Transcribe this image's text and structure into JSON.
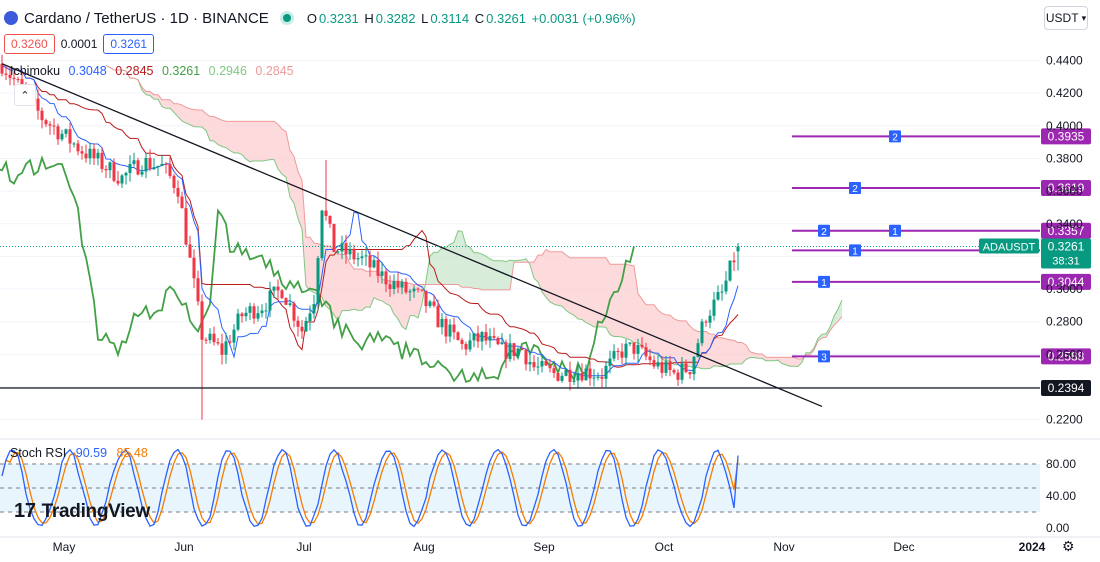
{
  "header": {
    "symbol": "Cardano / TetherUS · 1D · BINANCE",
    "o_label": "O",
    "o_value": "0.3231",
    "h_label": "H",
    "h_value": "0.3282",
    "l_label": "L",
    "l_value": "0.3114",
    "c_label": "C",
    "c_value": "0.3261",
    "change": "+0.0031 (+0.96%)",
    "sell": "0.3260",
    "spread": "0.0001",
    "buy": "0.3261",
    "currency": "USDT"
  },
  "ichimoku": {
    "name": "Ichimoku",
    "v1": "0.3048",
    "v2": "0.2845",
    "v3": "0.3261",
    "v4": "0.2946",
    "v5": "0.2845"
  },
  "stoch": {
    "name": "Stoch RSI",
    "k": "90.59",
    "d": "85.48"
  },
  "branding": {
    "logo_text": "TradingView",
    "logo_mark": "17"
  },
  "colors": {
    "up": "#089981",
    "down": "#f23645",
    "tenkan": "#2962ff",
    "kijun": "#b71c1c",
    "chikou": "#43a047",
    "cloud_up": "#c8e6c9",
    "cloud_down": "#fccbcd",
    "level": "#9c27b0",
    "stoch_k": "#2962ff",
    "stoch_d": "#f57c00"
  },
  "chart_data": [
    {
      "type": "candlestick",
      "title": "Cardano / TetherUS · 1D · BINANCE",
      "ylim": [
        0.21,
        0.455
      ],
      "y_ticks": [
        "0.4400",
        "0.4200",
        "0.4000",
        "0.3800",
        "0.3600",
        "0.3400",
        "0.3200",
        "0.3000",
        "0.2800",
        "0.2600",
        "0.2400",
        "0.2200"
      ],
      "x_ticks": [
        "May",
        "Jun",
        "Jul",
        "Aug",
        "Sep",
        "Oct",
        "Nov",
        "Dec",
        "2024"
      ],
      "price_anchors": [
        {
          "d": 0,
          "p": 0.438
        },
        {
          "d": 10,
          "p": 0.405
        },
        {
          "d": 20,
          "p": 0.385
        },
        {
          "d": 30,
          "p": 0.368
        },
        {
          "d": 35,
          "p": 0.378
        },
        {
          "d": 40,
          "p": 0.375
        },
        {
          "d": 44,
          "p": 0.362
        },
        {
          "d": 50,
          "p": 0.272
        },
        {
          "d": 55,
          "p": 0.262
        },
        {
          "d": 60,
          "p": 0.284
        },
        {
          "d": 65,
          "p": 0.29
        },
        {
          "d": 70,
          "p": 0.3
        },
        {
          "d": 75,
          "p": 0.275
        },
        {
          "d": 78,
          "p": 0.295
        },
        {
          "d": 80,
          "p": 0.352
        },
        {
          "d": 83,
          "p": 0.325
        },
        {
          "d": 90,
          "p": 0.318
        },
        {
          "d": 95,
          "p": 0.308
        },
        {
          "d": 100,
          "p": 0.3
        },
        {
          "d": 105,
          "p": 0.294
        },
        {
          "d": 110,
          "p": 0.278
        },
        {
          "d": 115,
          "p": 0.265
        },
        {
          "d": 120,
          "p": 0.27
        },
        {
          "d": 125,
          "p": 0.262
        },
        {
          "d": 130,
          "p": 0.263
        },
        {
          "d": 133,
          "p": 0.252
        },
        {
          "d": 138,
          "p": 0.248
        },
        {
          "d": 145,
          "p": 0.25
        },
        {
          "d": 150,
          "p": 0.248
        },
        {
          "d": 155,
          "p": 0.262
        },
        {
          "d": 158,
          "p": 0.264
        },
        {
          "d": 163,
          "p": 0.254
        },
        {
          "d": 168,
          "p": 0.248
        },
        {
          "d": 172,
          "p": 0.252
        },
        {
          "d": 176,
          "p": 0.284
        },
        {
          "d": 180,
          "p": 0.297
        },
        {
          "d": 184,
          "p": 0.326
        }
      ],
      "last_price": "0.3261",
      "countdown": "38:31",
      "price_tag": "ADAUSDT",
      "levels": [
        {
          "price": "0.3935",
          "marker": "2"
        },
        {
          "price": "0.3619",
          "marker": "2"
        },
        {
          "price": "0.3357",
          "marker": "2",
          "marker2": "1"
        },
        {
          "price": "0.3237",
          "marker": "1"
        },
        {
          "price": "0.3044",
          "marker": "1"
        },
        {
          "price": "0.2588",
          "marker": "3"
        }
      ],
      "support": "0.2394",
      "trendline": [
        {
          "d": 0,
          "p": 0.438
        },
        {
          "d": 195,
          "p": 0.233
        }
      ],
      "low_wick": {
        "d": 50,
        "p": 0.22
      },
      "high_wick": {
        "d": 81,
        "p": 0.379
      }
    },
    {
      "type": "line",
      "title": "Stoch RSI",
      "ylim": [
        0,
        100
      ],
      "y_ticks": [
        "80.00",
        "40.00",
        "0.00"
      ],
      "band": [
        20,
        80
      ],
      "series": [
        {
          "name": "K",
          "value": "90.59"
        },
        {
          "name": "D",
          "value": "85.48"
        }
      ]
    }
  ]
}
